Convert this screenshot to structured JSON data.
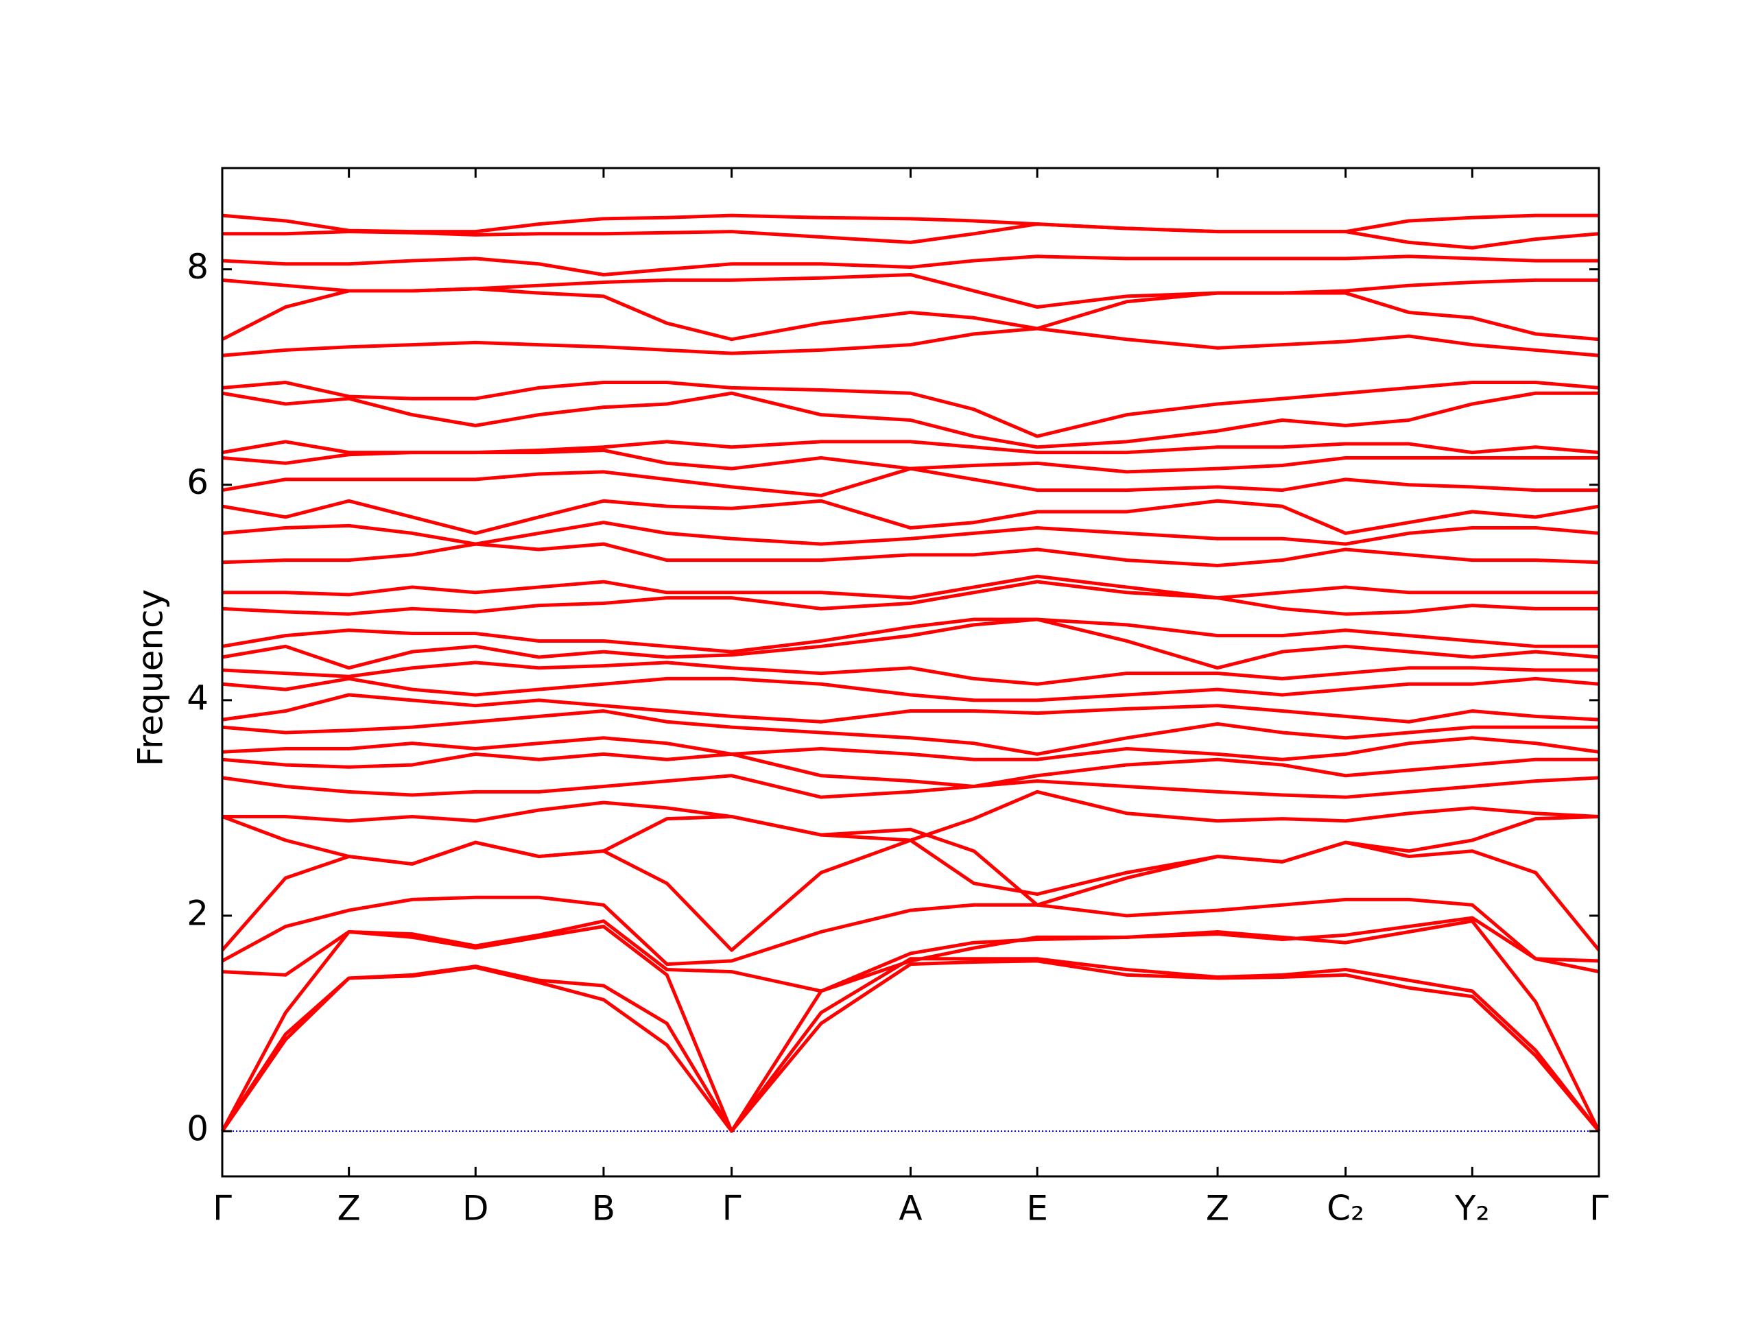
{
  "chart_data": {
    "type": "line",
    "y_label": "Frequency",
    "color": "#ff0000",
    "x": [
      0,
      0.046,
      0.092,
      0.138,
      0.184,
      0.23,
      0.277,
      0.323,
      0.37,
      0.435,
      0.5,
      0.546,
      0.592,
      0.657,
      0.723,
      0.77,
      0.816,
      0.862,
      0.908,
      0.954,
      1.0
    ],
    "xlim": [
      0,
      1.0
    ],
    "xticks": [
      {
        "value": 0,
        "label": "Γ"
      },
      {
        "value": 0.092,
        "label": "Z"
      },
      {
        "value": 0.184,
        "label": "D"
      },
      {
        "value": 0.277,
        "label": "B"
      },
      {
        "value": 0.37,
        "label": "Γ"
      },
      {
        "value": 0.5,
        "label": "A"
      },
      {
        "value": 0.592,
        "label": "E"
      },
      {
        "value": 0.723,
        "label": "Z"
      },
      {
        "value": 0.816,
        "label": "C₂"
      },
      {
        "value": 0.908,
        "label": "Y₂"
      },
      {
        "value": 1.0,
        "label": "Γ"
      }
    ],
    "ylim": [
      -0.42,
      8.94
    ],
    "yticks": [
      0,
      2,
      4,
      6,
      8
    ],
    "series": [
      {
        "values": [
          0,
          0.85,
          1.42,
          1.44,
          1.52,
          1.38,
          1.22,
          0.8,
          0,
          1.0,
          1.55,
          1.57,
          1.58,
          1.45,
          1.42,
          1.43,
          1.45,
          1.33,
          1.25,
          0.7,
          0
        ]
      },
      {
        "values": [
          0,
          0.9,
          1.42,
          1.45,
          1.53,
          1.4,
          1.35,
          1.0,
          0,
          1.1,
          1.6,
          1.6,
          1.6,
          1.5,
          1.43,
          1.45,
          1.5,
          1.4,
          1.3,
          0.75,
          0
        ]
      },
      {
        "values": [
          0,
          1.1,
          1.85,
          1.8,
          1.7,
          1.8,
          1.9,
          1.45,
          0,
          1.3,
          1.58,
          1.7,
          1.8,
          1.8,
          1.85,
          1.8,
          1.75,
          1.85,
          1.95,
          1.2,
          0
        ]
      },
      {
        "values": [
          1.48,
          1.45,
          1.85,
          1.83,
          1.72,
          1.82,
          1.95,
          1.5,
          1.48,
          1.3,
          1.65,
          1.75,
          1.78,
          1.8,
          1.83,
          1.78,
          1.82,
          1.9,
          1.98,
          1.6,
          1.48
        ]
      },
      {
        "values": [
          1.58,
          1.9,
          2.05,
          2.15,
          2.17,
          2.17,
          2.1,
          1.55,
          1.58,
          1.85,
          2.05,
          2.1,
          2.1,
          2.0,
          2.05,
          2.1,
          2.15,
          2.15,
          2.1,
          1.6,
          1.58
        ]
      },
      {
        "values": [
          1.68,
          2.35,
          2.55,
          2.48,
          2.68,
          2.55,
          2.6,
          2.3,
          1.68,
          2.4,
          2.7,
          2.3,
          2.2,
          2.4,
          2.55,
          2.5,
          2.68,
          2.55,
          2.6,
          2.4,
          1.68
        ]
      },
      {
        "values": [
          2.92,
          2.7,
          2.55,
          2.48,
          2.68,
          2.55,
          2.6,
          2.9,
          2.92,
          2.75,
          2.8,
          2.6,
          2.1,
          2.35,
          2.55,
          2.5,
          2.68,
          2.6,
          2.7,
          2.9,
          2.92
        ]
      },
      {
        "values": [
          2.92,
          2.92,
          2.88,
          2.92,
          2.88,
          2.98,
          3.05,
          3.0,
          2.92,
          2.75,
          2.7,
          2.9,
          3.15,
          2.95,
          2.88,
          2.9,
          2.88,
          2.95,
          3.0,
          2.95,
          2.92
        ]
      },
      {
        "values": [
          3.28,
          3.2,
          3.15,
          3.12,
          3.15,
          3.15,
          3.2,
          3.25,
          3.3,
          3.1,
          3.15,
          3.2,
          3.25,
          3.2,
          3.15,
          3.12,
          3.1,
          3.15,
          3.2,
          3.25,
          3.28
        ]
      },
      {
        "values": [
          3.45,
          3.4,
          3.38,
          3.4,
          3.5,
          3.45,
          3.5,
          3.45,
          3.5,
          3.3,
          3.25,
          3.2,
          3.3,
          3.4,
          3.45,
          3.4,
          3.3,
          3.35,
          3.4,
          3.45,
          3.45
        ]
      },
      {
        "values": [
          3.52,
          3.55,
          3.55,
          3.6,
          3.55,
          3.6,
          3.65,
          3.6,
          3.5,
          3.55,
          3.5,
          3.45,
          3.45,
          3.55,
          3.5,
          3.45,
          3.5,
          3.6,
          3.65,
          3.6,
          3.52
        ]
      },
      {
        "values": [
          3.75,
          3.7,
          3.72,
          3.75,
          3.8,
          3.85,
          3.9,
          3.8,
          3.75,
          3.7,
          3.65,
          3.6,
          3.5,
          3.65,
          3.78,
          3.7,
          3.65,
          3.7,
          3.75,
          3.75,
          3.75
        ]
      },
      {
        "values": [
          3.82,
          3.9,
          4.05,
          4.0,
          3.95,
          4.0,
          3.95,
          3.9,
          3.85,
          3.8,
          3.9,
          3.9,
          3.88,
          3.92,
          3.95,
          3.9,
          3.85,
          3.8,
          3.9,
          3.85,
          3.82
        ]
      },
      {
        "values": [
          4.15,
          4.1,
          4.2,
          4.1,
          4.05,
          4.1,
          4.15,
          4.2,
          4.2,
          4.15,
          4.05,
          4.0,
          4.0,
          4.05,
          4.1,
          4.05,
          4.1,
          4.15,
          4.15,
          4.2,
          4.15
        ]
      },
      {
        "values": [
          4.28,
          4.25,
          4.22,
          4.3,
          4.35,
          4.3,
          4.32,
          4.35,
          4.3,
          4.25,
          4.3,
          4.2,
          4.15,
          4.25,
          4.25,
          4.2,
          4.25,
          4.3,
          4.3,
          4.28,
          4.28
        ]
      },
      {
        "values": [
          4.4,
          4.5,
          4.3,
          4.45,
          4.5,
          4.4,
          4.45,
          4.4,
          4.42,
          4.5,
          4.6,
          4.7,
          4.75,
          4.55,
          4.3,
          4.45,
          4.5,
          4.45,
          4.4,
          4.45,
          4.4
        ]
      },
      {
        "values": [
          4.5,
          4.6,
          4.65,
          4.62,
          4.62,
          4.55,
          4.55,
          4.5,
          4.45,
          4.55,
          4.68,
          4.75,
          4.75,
          4.7,
          4.6,
          4.6,
          4.65,
          4.6,
          4.55,
          4.5,
          4.5
        ]
      },
      {
        "values": [
          4.85,
          4.82,
          4.8,
          4.85,
          4.82,
          4.88,
          4.9,
          4.95,
          4.95,
          4.85,
          4.9,
          5.0,
          5.1,
          5.0,
          4.95,
          4.85,
          4.8,
          4.82,
          4.88,
          4.85,
          4.85
        ]
      },
      {
        "values": [
          5.0,
          5.0,
          4.98,
          5.05,
          5.0,
          5.05,
          5.1,
          5.0,
          5.0,
          5.0,
          4.95,
          5.05,
          5.15,
          5.05,
          4.95,
          5.0,
          5.05,
          5.0,
          5.0,
          5.0,
          5.0
        ]
      },
      {
        "values": [
          5.28,
          5.3,
          5.3,
          5.35,
          5.45,
          5.4,
          5.45,
          5.3,
          5.3,
          5.3,
          5.35,
          5.35,
          5.4,
          5.3,
          5.25,
          5.3,
          5.4,
          5.35,
          5.3,
          5.3,
          5.28
        ]
      },
      {
        "values": [
          5.55,
          5.6,
          5.62,
          5.55,
          5.45,
          5.55,
          5.65,
          5.55,
          5.5,
          5.45,
          5.5,
          5.55,
          5.6,
          5.55,
          5.5,
          5.5,
          5.45,
          5.55,
          5.6,
          5.6,
          5.55
        ]
      },
      {
        "values": [
          5.8,
          5.7,
          5.85,
          5.7,
          5.55,
          5.7,
          5.85,
          5.8,
          5.78,
          5.85,
          5.6,
          5.65,
          5.75,
          5.75,
          5.85,
          5.8,
          5.55,
          5.65,
          5.75,
          5.7,
          5.8
        ]
      },
      {
        "values": [
          5.95,
          6.05,
          6.05,
          6.05,
          6.05,
          6.1,
          6.12,
          6.05,
          5.98,
          5.9,
          6.15,
          6.05,
          5.95,
          5.95,
          5.98,
          5.95,
          6.05,
          6.0,
          5.98,
          5.95,
          5.95
        ]
      },
      {
        "values": [
          6.25,
          6.2,
          6.28,
          6.3,
          6.3,
          6.3,
          6.32,
          6.2,
          6.15,
          6.25,
          6.15,
          6.18,
          6.2,
          6.12,
          6.15,
          6.18,
          6.25,
          6.25,
          6.25,
          6.25,
          6.25
        ]
      },
      {
        "values": [
          6.3,
          6.4,
          6.3,
          6.3,
          6.3,
          6.32,
          6.35,
          6.4,
          6.35,
          6.4,
          6.4,
          6.35,
          6.3,
          6.3,
          6.35,
          6.35,
          6.38,
          6.38,
          6.3,
          6.35,
          6.3
        ]
      },
      {
        "values": [
          6.85,
          6.75,
          6.8,
          6.65,
          6.55,
          6.65,
          6.72,
          6.75,
          6.85,
          6.65,
          6.6,
          6.45,
          6.35,
          6.4,
          6.5,
          6.6,
          6.55,
          6.6,
          6.75,
          6.85,
          6.85
        ]
      },
      {
        "values": [
          6.9,
          6.95,
          6.82,
          6.8,
          6.8,
          6.9,
          6.95,
          6.95,
          6.9,
          6.88,
          6.85,
          6.7,
          6.45,
          6.65,
          6.75,
          6.8,
          6.85,
          6.9,
          6.95,
          6.95,
          6.9
        ]
      },
      {
        "values": [
          7.2,
          7.25,
          7.28,
          7.3,
          7.32,
          7.3,
          7.28,
          7.25,
          7.22,
          7.25,
          7.3,
          7.4,
          7.45,
          7.35,
          7.27,
          7.3,
          7.33,
          7.38,
          7.3,
          7.25,
          7.2
        ]
      },
      {
        "values": [
          7.35,
          7.65,
          7.8,
          7.8,
          7.82,
          7.78,
          7.75,
          7.5,
          7.35,
          7.5,
          7.6,
          7.55,
          7.45,
          7.7,
          7.78,
          7.78,
          7.78,
          7.6,
          7.55,
          7.4,
          7.35
        ]
      },
      {
        "values": [
          7.9,
          7.85,
          7.8,
          7.8,
          7.82,
          7.85,
          7.88,
          7.9,
          7.9,
          7.92,
          7.95,
          7.8,
          7.65,
          7.75,
          7.78,
          7.78,
          7.8,
          7.85,
          7.88,
          7.9,
          7.9
        ]
      },
      {
        "values": [
          8.08,
          8.05,
          8.05,
          8.08,
          8.1,
          8.05,
          7.95,
          8.0,
          8.05,
          8.05,
          8.02,
          8.08,
          8.12,
          8.1,
          8.1,
          8.1,
          8.1,
          8.12,
          8.1,
          8.08,
          8.08
        ]
      },
      {
        "values": [
          8.33,
          8.33,
          8.35,
          8.34,
          8.32,
          8.33,
          8.33,
          8.34,
          8.35,
          8.3,
          8.25,
          8.33,
          8.42,
          8.38,
          8.35,
          8.35,
          8.35,
          8.25,
          8.2,
          8.28,
          8.33
        ]
      },
      {
        "values": [
          8.5,
          8.45,
          8.36,
          8.35,
          8.35,
          8.42,
          8.47,
          8.48,
          8.5,
          8.48,
          8.47,
          8.45,
          8.42,
          8.38,
          8.35,
          8.35,
          8.35,
          8.45,
          8.48,
          8.5,
          8.5
        ]
      }
    ]
  }
}
